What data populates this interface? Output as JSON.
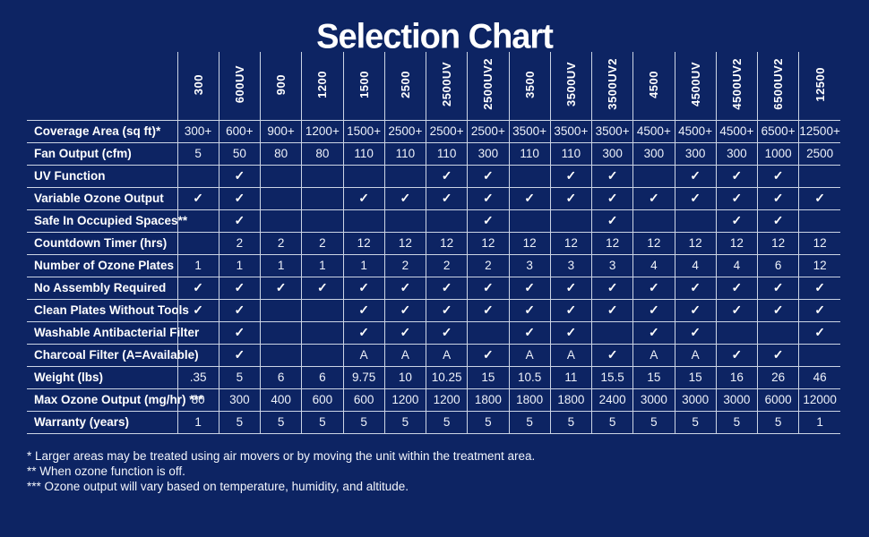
{
  "page": {
    "title": "Selection Chart",
    "background_color": "#0d2463",
    "border_color": "#ccd5e5",
    "text_color": "#ffffff"
  },
  "chart_data": {
    "type": "table",
    "title": "Selection Chart",
    "columns": [
      "300",
      "600UV",
      "900",
      "1200",
      "1500",
      "2500",
      "2500UV",
      "2500UV2",
      "3500",
      "3500UV",
      "3500UV2",
      "4500",
      "4500UV",
      "4500UV2",
      "6500UV2",
      "12500"
    ],
    "rows": [
      {
        "label": "Coverage Area (sq ft)*",
        "values": [
          "300+",
          "600+",
          "900+",
          "1200+",
          "1500+",
          "2500+",
          "2500+",
          "2500+",
          "3500+",
          "3500+",
          "3500+",
          "4500+",
          "4500+",
          "4500+",
          "6500+",
          "12500+"
        ]
      },
      {
        "label": "Fan Output (cfm)",
        "values": [
          "5",
          "50",
          "80",
          "80",
          "110",
          "110",
          "110",
          "300",
          "110",
          "110",
          "300",
          "300",
          "300",
          "300",
          "1000",
          "2500"
        ]
      },
      {
        "label": "UV Function",
        "values": [
          "",
          "✓",
          "",
          "",
          "",
          "",
          "✓",
          "✓",
          "",
          "✓",
          "✓",
          "",
          "✓",
          "✓",
          "✓",
          ""
        ]
      },
      {
        "label": "Variable Ozone Output",
        "values": [
          "✓",
          "✓",
          "",
          "",
          "✓",
          "✓",
          "✓",
          "✓",
          "✓",
          "✓",
          "✓",
          "✓",
          "✓",
          "✓",
          "✓",
          "✓"
        ]
      },
      {
        "label": "Safe In Occupied Spaces**",
        "values": [
          "",
          "✓",
          "",
          "",
          "",
          "",
          "",
          "✓",
          "",
          "",
          "✓",
          "",
          "",
          "✓",
          "✓",
          ""
        ]
      },
      {
        "label": "Countdown Timer (hrs)",
        "values": [
          "",
          "2",
          "2",
          "2",
          "12",
          "12",
          "12",
          "12",
          "12",
          "12",
          "12",
          "12",
          "12",
          "12",
          "12",
          "12"
        ]
      },
      {
        "label": "Number of Ozone Plates",
        "values": [
          "1",
          "1",
          "1",
          "1",
          "1",
          "2",
          "2",
          "2",
          "3",
          "3",
          "3",
          "4",
          "4",
          "4",
          "6",
          "12"
        ]
      },
      {
        "label": "No Assembly Required",
        "values": [
          "✓",
          "✓",
          "✓",
          "✓",
          "✓",
          "✓",
          "✓",
          "✓",
          "✓",
          "✓",
          "✓",
          "✓",
          "✓",
          "✓",
          "✓",
          "✓"
        ]
      },
      {
        "label": "Clean Plates Without Tools",
        "values": [
          "✓",
          "✓",
          "",
          "",
          "✓",
          "✓",
          "✓",
          "✓",
          "✓",
          "✓",
          "✓",
          "✓",
          "✓",
          "✓",
          "✓",
          "✓"
        ]
      },
      {
        "label": "Washable Antibacterial Filter",
        "values": [
          "",
          "✓",
          "",
          "",
          "✓",
          "✓",
          "✓",
          "",
          "✓",
          "✓",
          "",
          "✓",
          "✓",
          "",
          "",
          "✓"
        ]
      },
      {
        "label": "Charcoal Filter (A=Available)",
        "values": [
          "",
          "✓",
          "",
          "",
          "A",
          "A",
          "A",
          "✓",
          "A",
          "A",
          "✓",
          "A",
          "A",
          "✓",
          "✓",
          ""
        ]
      },
      {
        "label": "Weight (lbs)",
        "values": [
          ".35",
          "5",
          "6",
          "6",
          "9.75",
          "10",
          "10.25",
          "15",
          "10.5",
          "11",
          "15.5",
          "15",
          "15",
          "16",
          "26",
          "46"
        ]
      },
      {
        "label": "Max Ozone Output (mg/hr) ***",
        "values": [
          "80",
          "300",
          "400",
          "600",
          "600",
          "1200",
          "1200",
          "1800",
          "1800",
          "1800",
          "2400",
          "3000",
          "3000",
          "3000",
          "6000",
          "12000"
        ]
      },
      {
        "label": "Warranty (years)",
        "values": [
          "1",
          "5",
          "5",
          "5",
          "5",
          "5",
          "5",
          "5",
          "5",
          "5",
          "5",
          "5",
          "5",
          "5",
          "5",
          "1"
        ]
      }
    ]
  },
  "footnotes": [
    "* Larger areas may be treated using air movers or by moving the unit within the treatment area.",
    "** When ozone function is off.",
    "*** Ozone output will vary based on temperature, humidity, and altitude."
  ]
}
